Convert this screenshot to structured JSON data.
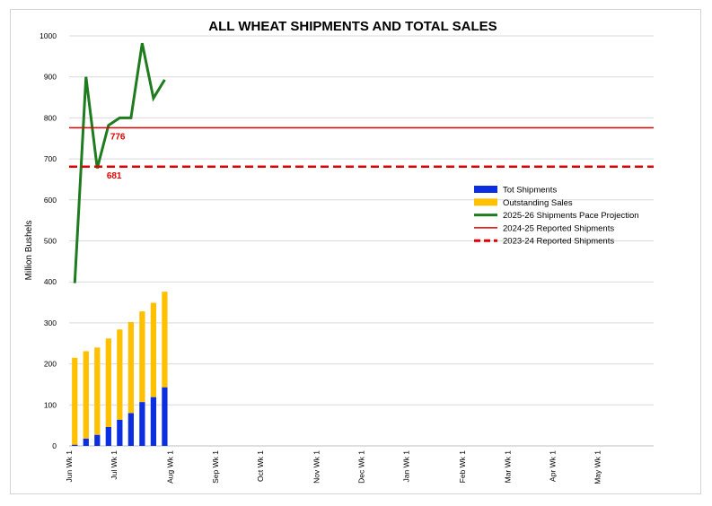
{
  "chart_data": {
    "type": "bar",
    "title": "ALL WHEAT SHIPMENTS AND TOTAL SALES",
    "ylabel": "Million Bushels",
    "xlabel": "",
    "ylim": [
      0,
      1000
    ],
    "yticks": [
      0,
      100,
      200,
      300,
      400,
      500,
      600,
      700,
      800,
      900,
      1000
    ],
    "grid": true,
    "legend_position": "right",
    "x_tick_labels": [
      {
        "label": "Jun Wk 1",
        "week": 0
      },
      {
        "label": "Jul Wk 1",
        "week": 4
      },
      {
        "label": "Aug Wk 1",
        "week": 9
      },
      {
        "label": "Sep Wk 1",
        "week": 13
      },
      {
        "label": "Oct Wk 1",
        "week": 17
      },
      {
        "label": "Nov Wk 1",
        "week": 22
      },
      {
        "label": "Dec Wk 1",
        "week": 26
      },
      {
        "label": "Jan Wk 1",
        "week": 30
      },
      {
        "label": "Feb Wk 1",
        "week": 35
      },
      {
        "label": "Mar Wk 1",
        "week": 39
      },
      {
        "label": "Apr Wk 1",
        "week": 43
      },
      {
        "label": "May Wk 1",
        "week": 47
      }
    ],
    "week_count": 52,
    "series": [
      {
        "name": "Tot Shipments",
        "kind": "stacked-bar",
        "color": "#0b2fe0",
        "weeks": [
          0,
          1,
          2,
          3,
          4,
          5,
          6,
          7,
          8
        ],
        "values": [
          3,
          18,
          27,
          46,
          64,
          80,
          107,
          119,
          143
        ]
      },
      {
        "name": "Outstanding Sales",
        "kind": "stacked-bar",
        "color": "#ffc000",
        "weeks": [
          0,
          1,
          2,
          3,
          4,
          5,
          6,
          7,
          8
        ],
        "values": [
          212,
          213,
          213,
          216,
          220,
          222,
          221,
          230,
          233
        ]
      },
      {
        "name": "2025-26 Shipments Pace Projection",
        "kind": "line",
        "color": "#1e7b1e",
        "weeks": [
          0,
          1,
          2,
          3,
          4,
          5,
          6,
          7,
          8
        ],
        "values": [
          397,
          900,
          677,
          782,
          800,
          800,
          982,
          848,
          893
        ]
      },
      {
        "name": "2024-25 Reported Shipments",
        "kind": "hline",
        "color": "#e00000",
        "value": 776,
        "dashed": false
      },
      {
        "name": "2023-24 Reported Shipments",
        "kind": "hline",
        "color": "#e00000",
        "value": 681,
        "dashed": true
      }
    ],
    "annotations": [
      {
        "text": "776",
        "value": 776,
        "color": "#e00000"
      },
      {
        "text": "681",
        "value": 681,
        "color": "#e00000"
      }
    ]
  }
}
